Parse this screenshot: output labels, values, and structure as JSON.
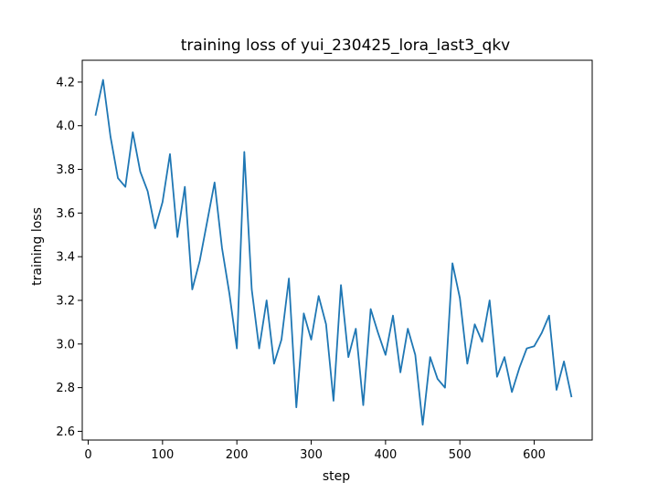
{
  "chart_data": {
    "type": "line",
    "title": "training loss of yui_230425_lora_last3_qkv",
    "xlabel": "step",
    "ylabel": "training loss",
    "xlim": [
      -8,
      678
    ],
    "ylim": [
      2.56,
      4.3
    ],
    "grid": false,
    "x_ticks": [
      0,
      100,
      200,
      300,
      400,
      500,
      600
    ],
    "y_ticks": [
      2.6,
      2.8,
      3.0,
      3.2,
      3.4,
      3.6,
      3.8,
      4.0,
      4.2
    ],
    "x_tick_labels": [
      "0",
      "100",
      "200",
      "300",
      "400",
      "500",
      "600"
    ],
    "y_tick_labels": [
      "2.6",
      "2.8",
      "3.0",
      "3.2",
      "3.4",
      "3.6",
      "3.8",
      "4.0",
      "4.2"
    ],
    "series": [
      {
        "color": "#1f77b4",
        "x": [
          10,
          20,
          30,
          40,
          50,
          60,
          70,
          80,
          90,
          100,
          110,
          120,
          130,
          140,
          150,
          160,
          170,
          180,
          190,
          200,
          210,
          220,
          230,
          240,
          250,
          260,
          270,
          280,
          290,
          300,
          310,
          320,
          330,
          340,
          350,
          360,
          370,
          380,
          390,
          400,
          410,
          420,
          430,
          440,
          450,
          460,
          470,
          480,
          490,
          500,
          510,
          520,
          530,
          540,
          550,
          560,
          570,
          580,
          590,
          600,
          610,
          620,
          630,
          640,
          650
        ],
        "y": [
          4.05,
          4.21,
          3.95,
          3.76,
          3.72,
          3.97,
          3.79,
          3.7,
          3.53,
          3.65,
          3.87,
          3.49,
          3.72,
          3.25,
          3.38,
          3.56,
          3.74,
          3.44,
          3.23,
          2.98,
          3.88,
          3.25,
          2.98,
          3.2,
          2.91,
          3.02,
          3.3,
          2.71,
          3.14,
          3.02,
          3.22,
          3.09,
          2.74,
          3.27,
          2.94,
          3.07,
          2.72,
          3.16,
          3.05,
          2.95,
          3.13,
          2.87,
          3.07,
          2.95,
          2.63,
          2.94,
          2.84,
          2.8,
          3.37,
          3.21,
          2.91,
          3.09,
          3.01,
          3.2,
          2.85,
          2.94,
          2.78,
          2.89,
          2.98,
          2.99,
          3.05,
          3.13,
          2.79,
          2.92,
          2.76
        ]
      }
    ]
  }
}
